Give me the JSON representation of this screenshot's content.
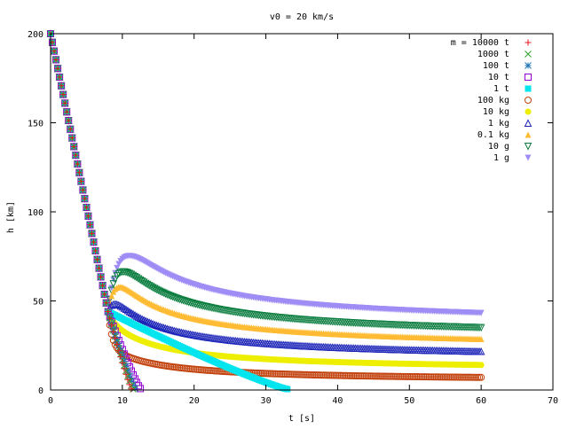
{
  "chart_data": {
    "type": "scatter",
    "title": "v0 = 20 km/s",
    "xlabel": "t [s]",
    "ylabel": "h [km]",
    "xlim": [
      0,
      70
    ],
    "ylim": [
      0,
      200
    ],
    "xticks": [
      "0",
      "10",
      "20",
      "30",
      "40",
      "50",
      "60",
      "70"
    ],
    "yticks": [
      "0",
      "50",
      "100",
      "150",
      "200"
    ],
    "grid": false,
    "legend_position": "top-right",
    "series": [
      {
        "name": "m = 10000 t",
        "marker": "plus",
        "color": "#e41a1c",
        "end_t": 11.3,
        "plateau_h": 0.3
      },
      {
        "name": "1000 t",
        "marker": "cross",
        "color": "#2ca02c",
        "end_t": 11.5,
        "plateau_h": 0.5
      },
      {
        "name": "100 t",
        "marker": "star",
        "color": "#1f77b4",
        "end_t": 11.8,
        "plateau_h": 0.7
      },
      {
        "name": "10 t",
        "marker": "square-open",
        "color": "#9400d3",
        "end_t": 12.5,
        "plateau_h": 0.8
      },
      {
        "name": "1 t",
        "marker": "square",
        "color": "#00e5ee",
        "end_t": 33.0,
        "plateau_h": 0.5
      },
      {
        "name": "100 kg",
        "marker": "circle-open",
        "color": "#c2410c",
        "end_t": 60.0,
        "plateau_h": 5.0
      },
      {
        "name": "10 kg",
        "marker": "circle",
        "color": "#eeee00",
        "end_t": 60.0,
        "plateau_h": 11.0
      },
      {
        "name": "1 kg",
        "marker": "triangle-open",
        "color": "#1c24b8",
        "end_t": 60.0,
        "plateau_h": 17.5
      },
      {
        "name": "0.1 kg",
        "marker": "triangle",
        "color": "#ffbb33",
        "end_t": 60.0,
        "plateau_h": 23.5
      },
      {
        "name": "10 g",
        "marker": "triangle-down-open",
        "color": "#0a7d3f",
        "end_t": 60.0,
        "plateau_h": 29.0
      },
      {
        "name": "1 g",
        "marker": "triangle-down",
        "color": "#9f8cf5",
        "end_t": 60.0,
        "plateau_h": 36.0
      }
    ]
  }
}
